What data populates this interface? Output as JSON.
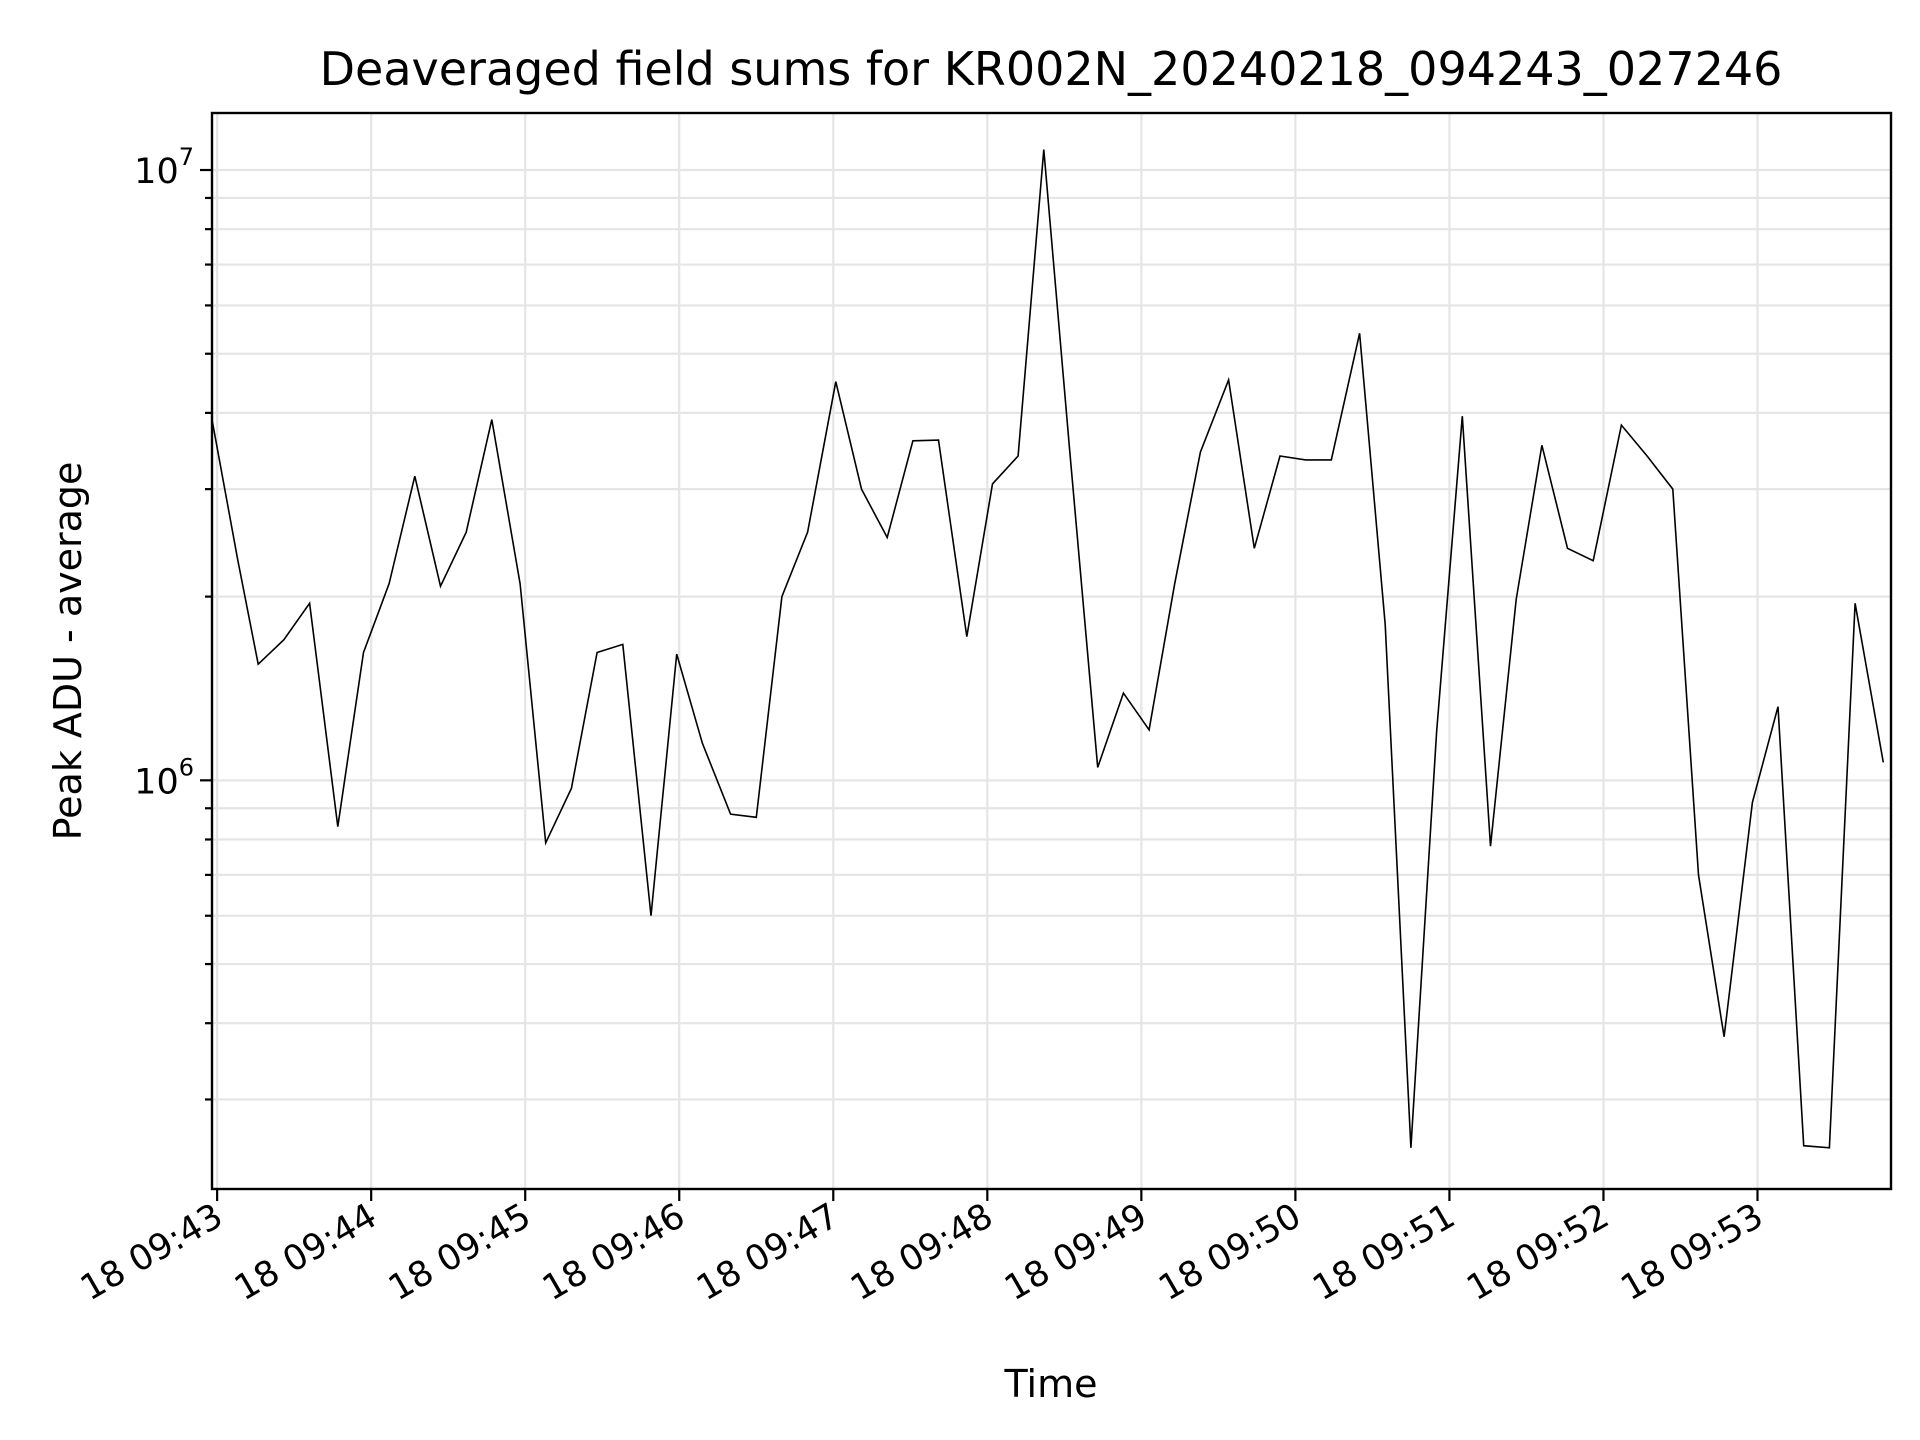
{
  "chart_data": {
    "type": "line",
    "title": "Deaveraged field sums for KR002N_20240218_094243_027246",
    "xlabel": "Time",
    "ylabel": "Peak ADU - average",
    "yscale": "log",
    "ylim": [
      214000,
      12400000
    ],
    "xlim": [
      "2024-02-18 09:42:58",
      "2024-02-18 09:53:52"
    ],
    "grid": true,
    "x_ticks": [
      {
        "t": "2024-02-18 09:43:00",
        "label": "18 09:43"
      },
      {
        "t": "2024-02-18 09:44:00",
        "label": "18 09:44"
      },
      {
        "t": "2024-02-18 09:45:00",
        "label": "18 09:45"
      },
      {
        "t": "2024-02-18 09:46:00",
        "label": "18 09:46"
      },
      {
        "t": "2024-02-18 09:47:00",
        "label": "18 09:47"
      },
      {
        "t": "2024-02-18 09:48:00",
        "label": "18 09:48"
      },
      {
        "t": "2024-02-18 09:49:00",
        "label": "18 09:49"
      },
      {
        "t": "2024-02-18 09:50:00",
        "label": "18 09:50"
      },
      {
        "t": "2024-02-18 09:51:00",
        "label": "18 09:51"
      },
      {
        "t": "2024-02-18 09:52:00",
        "label": "18 09:52"
      },
      {
        "t": "2024-02-18 09:53:00",
        "label": "18 09:53"
      }
    ],
    "y_ticks": [
      {
        "value": 1000000,
        "base": "10",
        "exp": "6"
      },
      {
        "value": 10000000,
        "base": "10",
        "exp": "7"
      }
    ],
    "series": [
      {
        "color": "#000000",
        "x": [
          "2024-02-18 09:42:58",
          "2024-02-18 09:43:08",
          "2024-02-18 09:43:16",
          "2024-02-18 09:43:26",
          "2024-02-18 09:43:36",
          "2024-02-18 09:43:47",
          "2024-02-18 09:43:57",
          "2024-02-18 09:44:07",
          "2024-02-18 09:44:17",
          "2024-02-18 09:44:27",
          "2024-02-18 09:44:37",
          "2024-02-18 09:44:47",
          "2024-02-18 09:44:58",
          "2024-02-18 09:45:08",
          "2024-02-18 09:45:18",
          "2024-02-18 09:45:28",
          "2024-02-18 09:45:38",
          "2024-02-18 09:45:49",
          "2024-02-18 09:45:59",
          "2024-02-18 09:46:09",
          "2024-02-18 09:46:20",
          "2024-02-18 09:46:30",
          "2024-02-18 09:46:40",
          "2024-02-18 09:46:50",
          "2024-02-18 09:47:01",
          "2024-02-18 09:47:11",
          "2024-02-18 09:47:21",
          "2024-02-18 09:47:31",
          "2024-02-18 09:47:41",
          "2024-02-18 09:47:52",
          "2024-02-18 09:48:02",
          "2024-02-18 09:48:12",
          "2024-02-18 09:48:22",
          "2024-02-18 09:48:32",
          "2024-02-18 09:48:43",
          "2024-02-18 09:48:53",
          "2024-02-18 09:49:03",
          "2024-02-18 09:49:13",
          "2024-02-18 09:49:23",
          "2024-02-18 09:49:34",
          "2024-02-18 09:49:44",
          "2024-02-18 09:49:54",
          "2024-02-18 09:50:04",
          "2024-02-18 09:50:14",
          "2024-02-18 09:50:25",
          "2024-02-18 09:50:35",
          "2024-02-18 09:50:45",
          "2024-02-18 09:50:55",
          "2024-02-18 09:51:05",
          "2024-02-18 09:51:16",
          "2024-02-18 09:51:26",
          "2024-02-18 09:51:36",
          "2024-02-18 09:51:46",
          "2024-02-18 09:51:56",
          "2024-02-18 09:52:07",
          "2024-02-18 09:52:17",
          "2024-02-18 09:52:27",
          "2024-02-18 09:52:37",
          "2024-02-18 09:52:47",
          "2024-02-18 09:52:58",
          "2024-02-18 09:53:08",
          "2024-02-18 09:53:18",
          "2024-02-18 09:53:28",
          "2024-02-18 09:53:38",
          "2024-02-18 09:53:49"
        ],
        "y": [
          3900000,
          2300000,
          1550000,
          1700000,
          1950000,
          840000,
          1620000,
          2100000,
          3150000,
          2080000,
          2550000,
          3900000,
          2100000,
          790000,
          970000,
          1620000,
          1670000,
          600000,
          1610000,
          1150000,
          880000,
          870000,
          2000000,
          2550000,
          4500000,
          3000000,
          2500000,
          3600000,
          3610000,
          1720000,
          3060000,
          3400000,
          10800000,
          3500000,
          1050000,
          1390000,
          1210000,
          2100000,
          3450000,
          4530000,
          2400000,
          3400000,
          3350000,
          3350000,
          5400000,
          1800000,
          250000,
          1200000,
          3950000,
          780000,
          1980000,
          3540000,
          2400000,
          2290000,
          3820000,
          3400000,
          3000000,
          700000,
          380000,
          920000,
          1320000,
          252000,
          250000,
          1950000,
          1070000
        ]
      }
    ]
  }
}
